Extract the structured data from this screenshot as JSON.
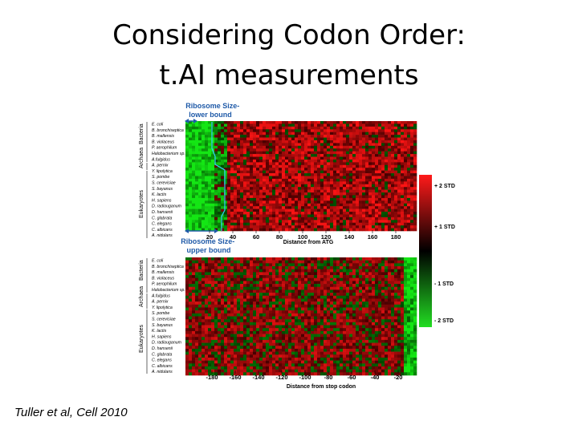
{
  "slide": {
    "title_line1": "Considering Codon Order:",
    "title_line2": "t.AI measurements",
    "citation": "Tuller et al, Cell 2010"
  },
  "figure": {
    "annotation_lower": "Ribosome Size-\nlower bound",
    "annotation_upper": "Ribosome Size-\nupper bound",
    "organisms": [
      "E. coli",
      "B. bronchiseptica",
      "B. mallensis",
      "B. violaceus",
      "P. aerophilum",
      "Halobacterium sp.",
      "A.fulgidus",
      "A. pernix",
      "Y. lipolytica",
      "S. pombe",
      "S. cerevisiae",
      "S. bayanus",
      "K. lactis",
      "H. sapiens",
      "D. radiouganum",
      "D. hansenii",
      "C. glabrata",
      "C. elegans",
      "C. albicans",
      "A. nidulans"
    ],
    "groups": [
      "Bacteria",
      "Archaea",
      "Eukaryotes"
    ],
    "top_xlabel": "Distance from ATG",
    "top_ticks": [
      "20",
      "40",
      "60",
      "80",
      "100",
      "120",
      "140",
      "160",
      "180"
    ],
    "bottom_xlabel": "Distance from stop codon",
    "bottom_ticks": [
      "-180",
      "-160",
      "-140",
      "-120",
      "-100",
      "-80",
      "-60",
      "-40",
      "-20"
    ],
    "scale_labels": [
      "+ 2 STD",
      "+ 1 STD",
      "- 1 STD",
      "- 2 STD"
    ],
    "colors": {
      "high": "#ff1a1a",
      "mid": "#000000",
      "low": "#22dd22",
      "annotation": "#1f5aa8"
    }
  }
}
